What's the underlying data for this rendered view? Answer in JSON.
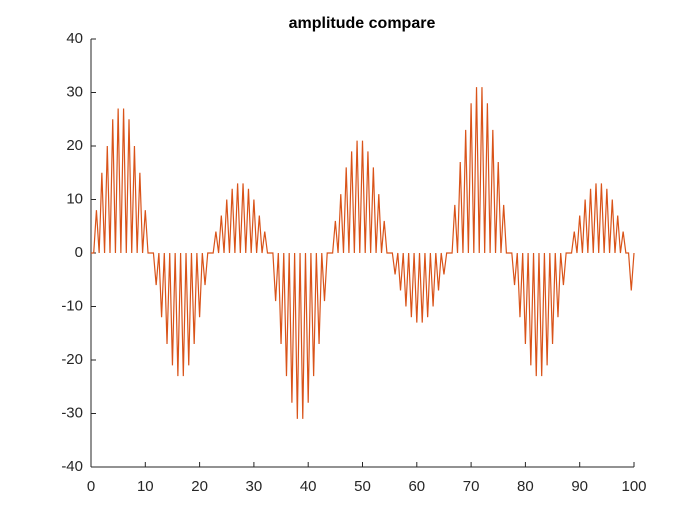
{
  "chart_data": {
    "type": "line",
    "title": "amplitude compare",
    "x": [
      0,
      0.5,
      1,
      1.5,
      2,
      2.5,
      3,
      3.5,
      4,
      4.5,
      5,
      5.5,
      6,
      6.5,
      7,
      7.5,
      8,
      8.5,
      9,
      9.5,
      10,
      10.5,
      11,
      11.5,
      12,
      12.5,
      13,
      13.5,
      14,
      14.5,
      15,
      15.5,
      16,
      16.5,
      17,
      17.5,
      18,
      18.5,
      19,
      19.5,
      20,
      20.5,
      21,
      21.5,
      22,
      22.5,
      23,
      23.5,
      24,
      24.5,
      25,
      25.5,
      26,
      26.5,
      27,
      27.5,
      28,
      28.5,
      29,
      29.5,
      30,
      30.5,
      31,
      31.5,
      32,
      32.5,
      33,
      33.5,
      34,
      34.5,
      35,
      35.5,
      36,
      36.5,
      37,
      37.5,
      38,
      38.5,
      39,
      39.5,
      40,
      40.5,
      41,
      41.5,
      42,
      42.5,
      43,
      43.5,
      44,
      44.5,
      45,
      45.5,
      46,
      46.5,
      47,
      47.5,
      48,
      48.5,
      49,
      49.5,
      50,
      50.5,
      51,
      51.5,
      52,
      52.5,
      53,
      53.5,
      54,
      54.5,
      55,
      55.5,
      56,
      56.5,
      57,
      57.5,
      58,
      58.5,
      59,
      59.5,
      60,
      60.5,
      61,
      61.5,
      62,
      62.5,
      63,
      63.5,
      64,
      64.5,
      65,
      65.5,
      66,
      66.5,
      67,
      67.5,
      68,
      68.5,
      69,
      69.5,
      70,
      70.5,
      71,
      71.5,
      72,
      72.5,
      73,
      73.5,
      74,
      74.5,
      75,
      75.5,
      76,
      76.5,
      77,
      77.5,
      78,
      78.5,
      79,
      79.5,
      80,
      80.5,
      81,
      81.5,
      82,
      82.5,
      83,
      83.5,
      84,
      84.5,
      85,
      85.5,
      86,
      86.5,
      87,
      87.5,
      88,
      88.5,
      89,
      89.5,
      90,
      90.5,
      91,
      91.5,
      92,
      92.5,
      93,
      93.5,
      94,
      94.5,
      95,
      95.5,
      96,
      96.5,
      97,
      97.5,
      98,
      98.5,
      99,
      99.5,
      100
    ],
    "series": [
      {
        "color": "#d95319",
        "values": [
          0,
          0,
          8,
          0,
          15,
          0,
          20,
          0,
          25,
          0,
          27,
          0,
          27,
          0,
          25,
          0,
          20,
          0,
          15,
          0,
          8,
          0,
          0,
          0,
          -6,
          0,
          -12,
          0,
          -17,
          0,
          -21,
          0,
          -23,
          0,
          -23,
          0,
          -21,
          0,
          -17,
          0,
          -12,
          0,
          -6,
          0,
          0,
          0,
          4,
          0,
          7,
          0,
          10,
          0,
          12,
          0,
          13,
          0,
          13,
          0,
          12,
          0,
          10,
          0,
          7,
          0,
          4,
          0,
          0,
          0,
          -9,
          0,
          -17,
          0,
          -23,
          0,
          -28,
          0,
          -31,
          0,
          -31,
          0,
          -28,
          0,
          -23,
          0,
          -17,
          0,
          -9,
          0,
          0,
          0,
          6,
          0,
          11,
          0,
          16,
          0,
          19,
          0,
          21,
          0,
          21,
          0,
          19,
          0,
          16,
          0,
          11,
          0,
          6,
          0,
          0,
          0,
          -4,
          0,
          -7,
          0,
          -10,
          0,
          -12,
          0,
          -13,
          0,
          -13,
          0,
          -12,
          0,
          -10,
          0,
          -7,
          0,
          -4,
          0,
          0,
          0,
          9,
          0,
          17,
          0,
          23,
          0,
          28,
          0,
          31,
          0,
          31,
          0,
          28,
          0,
          23,
          0,
          17,
          0,
          9,
          0,
          0,
          0,
          -6,
          0,
          -12,
          0,
          -17,
          0,
          -21,
          0,
          -23,
          0,
          -23,
          0,
          -21,
          0,
          -17,
          0,
          -12,
          0,
          -6,
          0,
          0,
          0,
          4,
          0,
          7,
          0,
          10,
          0,
          12,
          0,
          13,
          0,
          13,
          0,
          12,
          0,
          10,
          0,
          7,
          0,
          4,
          0,
          0,
          -7,
          0
        ]
      }
    ],
    "xlim": [
      0,
      100
    ],
    "xticks": [
      0,
      10,
      20,
      30,
      40,
      50,
      60,
      70,
      80,
      90,
      100
    ],
    "ylim": [
      -40,
      40
    ],
    "yticks": [
      -40,
      -30,
      -20,
      -10,
      0,
      10,
      20,
      30,
      40
    ]
  }
}
